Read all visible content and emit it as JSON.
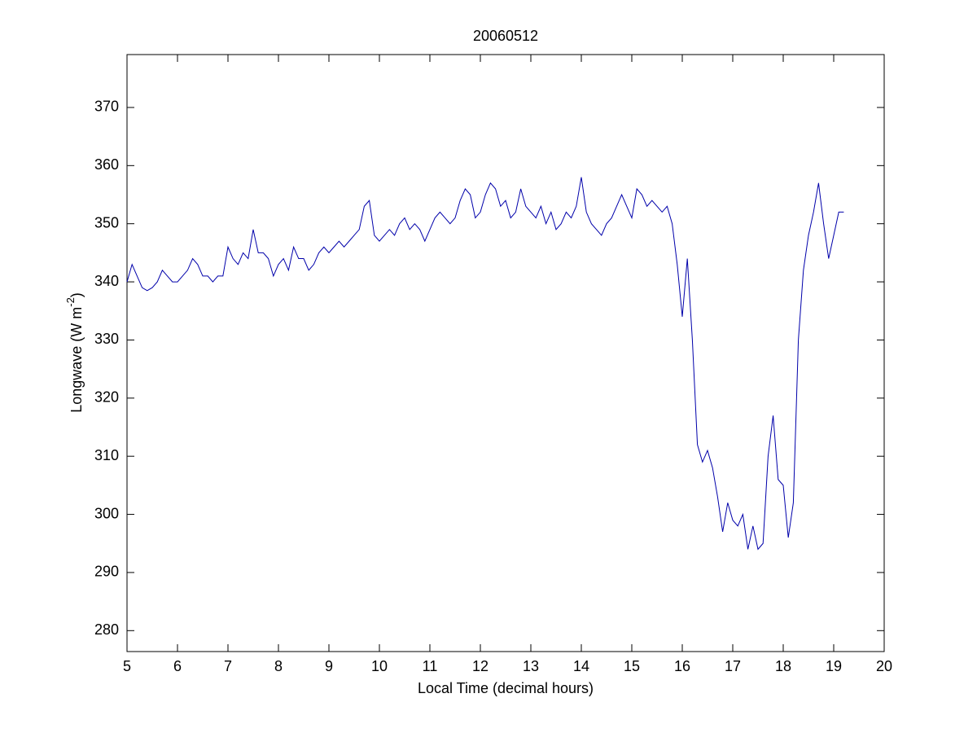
{
  "chart_data": {
    "type": "line",
    "title": "20060512",
    "xlabel": "Local Time (decimal hours)",
    "ylabel": [
      "Longwave (W m",
      "-2",
      ")"
    ],
    "xlim": [
      5,
      20
    ],
    "xticks": [
      5,
      6,
      7,
      8,
      9,
      10,
      11,
      12,
      13,
      14,
      15,
      16,
      17,
      18,
      19,
      20
    ],
    "ylim": [
      276.4,
      379.1
    ],
    "yticks": [
      280,
      290,
      300,
      310,
      320,
      330,
      340,
      350,
      360,
      370
    ],
    "x": [
      5.0,
      5.1,
      5.2,
      5.3,
      5.4,
      5.5,
      5.6,
      5.7,
      5.8,
      5.9,
      6.0,
      6.1,
      6.2,
      6.3,
      6.4,
      6.5,
      6.6,
      6.7,
      6.8,
      6.9,
      7.0,
      7.1,
      7.2,
      7.3,
      7.4,
      7.5,
      7.6,
      7.7,
      7.8,
      7.9,
      8.0,
      8.1,
      8.2,
      8.3,
      8.4,
      8.5,
      8.6,
      8.7,
      8.8,
      8.9,
      9.0,
      9.1,
      9.2,
      9.3,
      9.4,
      9.5,
      9.6,
      9.7,
      9.8,
      9.9,
      10.0,
      10.1,
      10.2,
      10.3,
      10.4,
      10.5,
      10.6,
      10.7,
      10.8,
      10.9,
      11.0,
      11.1,
      11.2,
      11.3,
      11.4,
      11.5,
      11.6,
      11.7,
      11.8,
      11.9,
      12.0,
      12.1,
      12.2,
      12.3,
      12.4,
      12.5,
      12.6,
      12.7,
      12.8,
      12.9,
      13.0,
      13.1,
      13.2,
      13.3,
      13.4,
      13.5,
      13.6,
      13.7,
      13.8,
      13.9,
      14.0,
      14.1,
      14.2,
      14.3,
      14.4,
      14.5,
      14.6,
      14.7,
      14.8,
      14.9,
      15.0,
      15.1,
      15.2,
      15.3,
      15.4,
      15.5,
      15.6,
      15.7,
      15.8,
      15.9,
      16.0,
      16.1,
      16.2,
      16.3,
      16.4,
      16.5,
      16.6,
      16.7,
      16.8,
      16.9,
      17.0,
      17.1,
      17.2,
      17.3,
      17.4,
      17.5,
      17.6,
      17.7,
      17.8,
      17.9,
      18.0,
      18.1,
      18.2,
      18.3,
      18.4,
      18.5,
      18.6,
      18.7,
      18.8,
      18.9,
      19.0,
      19.1,
      19.2
    ],
    "series": [
      {
        "color": "#0000aa",
        "values": [
          340,
          343,
          341,
          339,
          338.5,
          339,
          340,
          342,
          341,
          340,
          340,
          341,
          342,
          344,
          343,
          341,
          341,
          340,
          341,
          341,
          346,
          344,
          343,
          345,
          344,
          349,
          345,
          345,
          344,
          341,
          343,
          344,
          342,
          346,
          344,
          344,
          342,
          343,
          345,
          346,
          345,
          346,
          347,
          346,
          347,
          348,
          349,
          353,
          354,
          348,
          347,
          348,
          349,
          348,
          350,
          351,
          349,
          350,
          349,
          347,
          349,
          351,
          352,
          351,
          350,
          351,
          354,
          356,
          355,
          351,
          352,
          355,
          357,
          356,
          353,
          354,
          351,
          352,
          356,
          353,
          352,
          351,
          353,
          350,
          352,
          349,
          350,
          352,
          351,
          353,
          358,
          352,
          350,
          349,
          348,
          350,
          351,
          353,
          355,
          353,
          351,
          356,
          355,
          353,
          354,
          353,
          352,
          353,
          350,
          343,
          334,
          344,
          330,
          312,
          309,
          311,
          308,
          303,
          297,
          302,
          299,
          298,
          300,
          294,
          298,
          294,
          295,
          310,
          317,
          306,
          305,
          296,
          302,
          330,
          342,
          348,
          352,
          357,
          350,
          344,
          348,
          352,
          352
        ]
      }
    ]
  }
}
